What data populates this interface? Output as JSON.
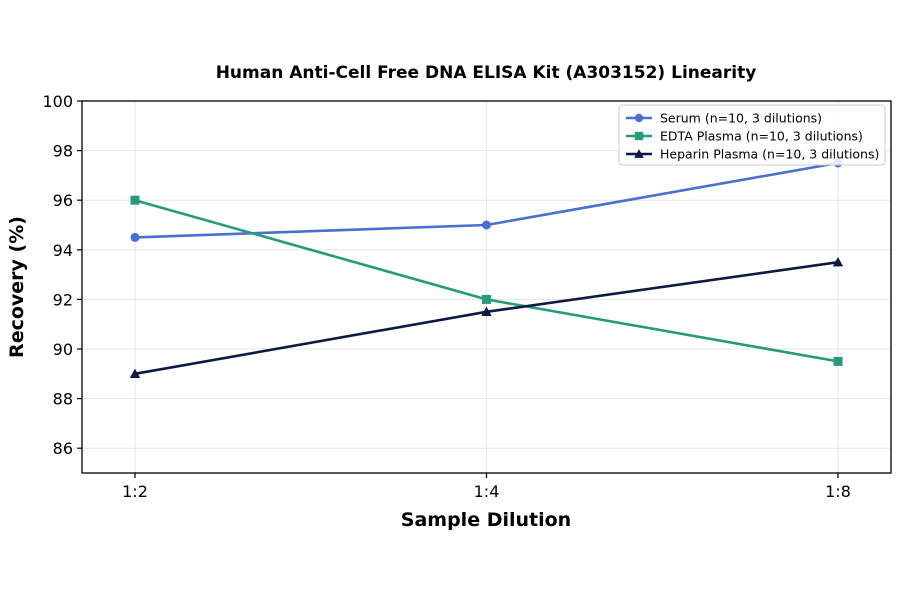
{
  "chart_data": {
    "type": "line",
    "title": "Human Anti-Cell Free DNA ELISA Kit (A303152) Linearity",
    "xlabel": "Sample Dilution",
    "ylabel": "Recovery (%)",
    "categories": [
      "1:2",
      "1:4",
      "1:8"
    ],
    "ylim": [
      85,
      100
    ],
    "yticks": [
      86,
      88,
      90,
      92,
      94,
      96,
      98,
      100
    ],
    "grid": true,
    "legend_position": "top-right",
    "series": [
      {
        "name": "Serum (n=10, 3 dilutions)",
        "values": [
          94.5,
          95.0,
          97.5
        ],
        "color": "#4a6fd0",
        "marker": "circle"
      },
      {
        "name": "EDTA Plasma (n=10, 3 dilutions)",
        "values": [
          96.0,
          92.0,
          89.5
        ],
        "color": "#279b77",
        "marker": "square"
      },
      {
        "name": "Heparin Plasma (n=10, 3 dilutions)",
        "values": [
          89.0,
          91.5,
          93.5
        ],
        "color": "#0d1a45",
        "marker": "triangle"
      }
    ]
  }
}
